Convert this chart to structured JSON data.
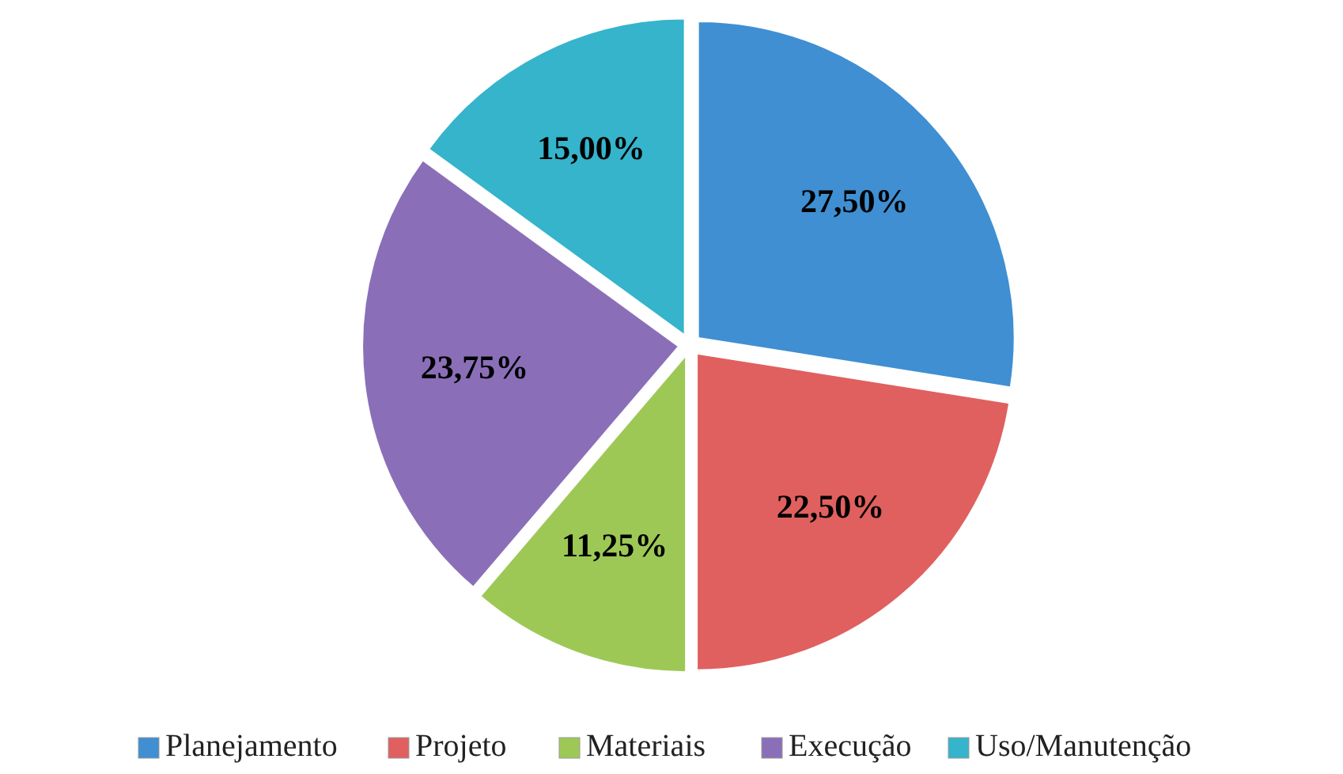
{
  "chart_data": {
    "type": "pie",
    "categories": [
      "Planejamento",
      "Projeto",
      "Materiais",
      "Execução",
      "Uso/Manutenção"
    ],
    "values": [
      27.5,
      22.5,
      11.25,
      23.75,
      15
    ],
    "colors": [
      "#3f8fd2",
      "#e0605f",
      "#9dc856",
      "#8a6fb8",
      "#35b4cc"
    ],
    "value_labels": [
      "27,50%",
      "22,50%",
      "11,25%",
      "23,75%",
      "15,00%"
    ],
    "legend": "bottom"
  }
}
